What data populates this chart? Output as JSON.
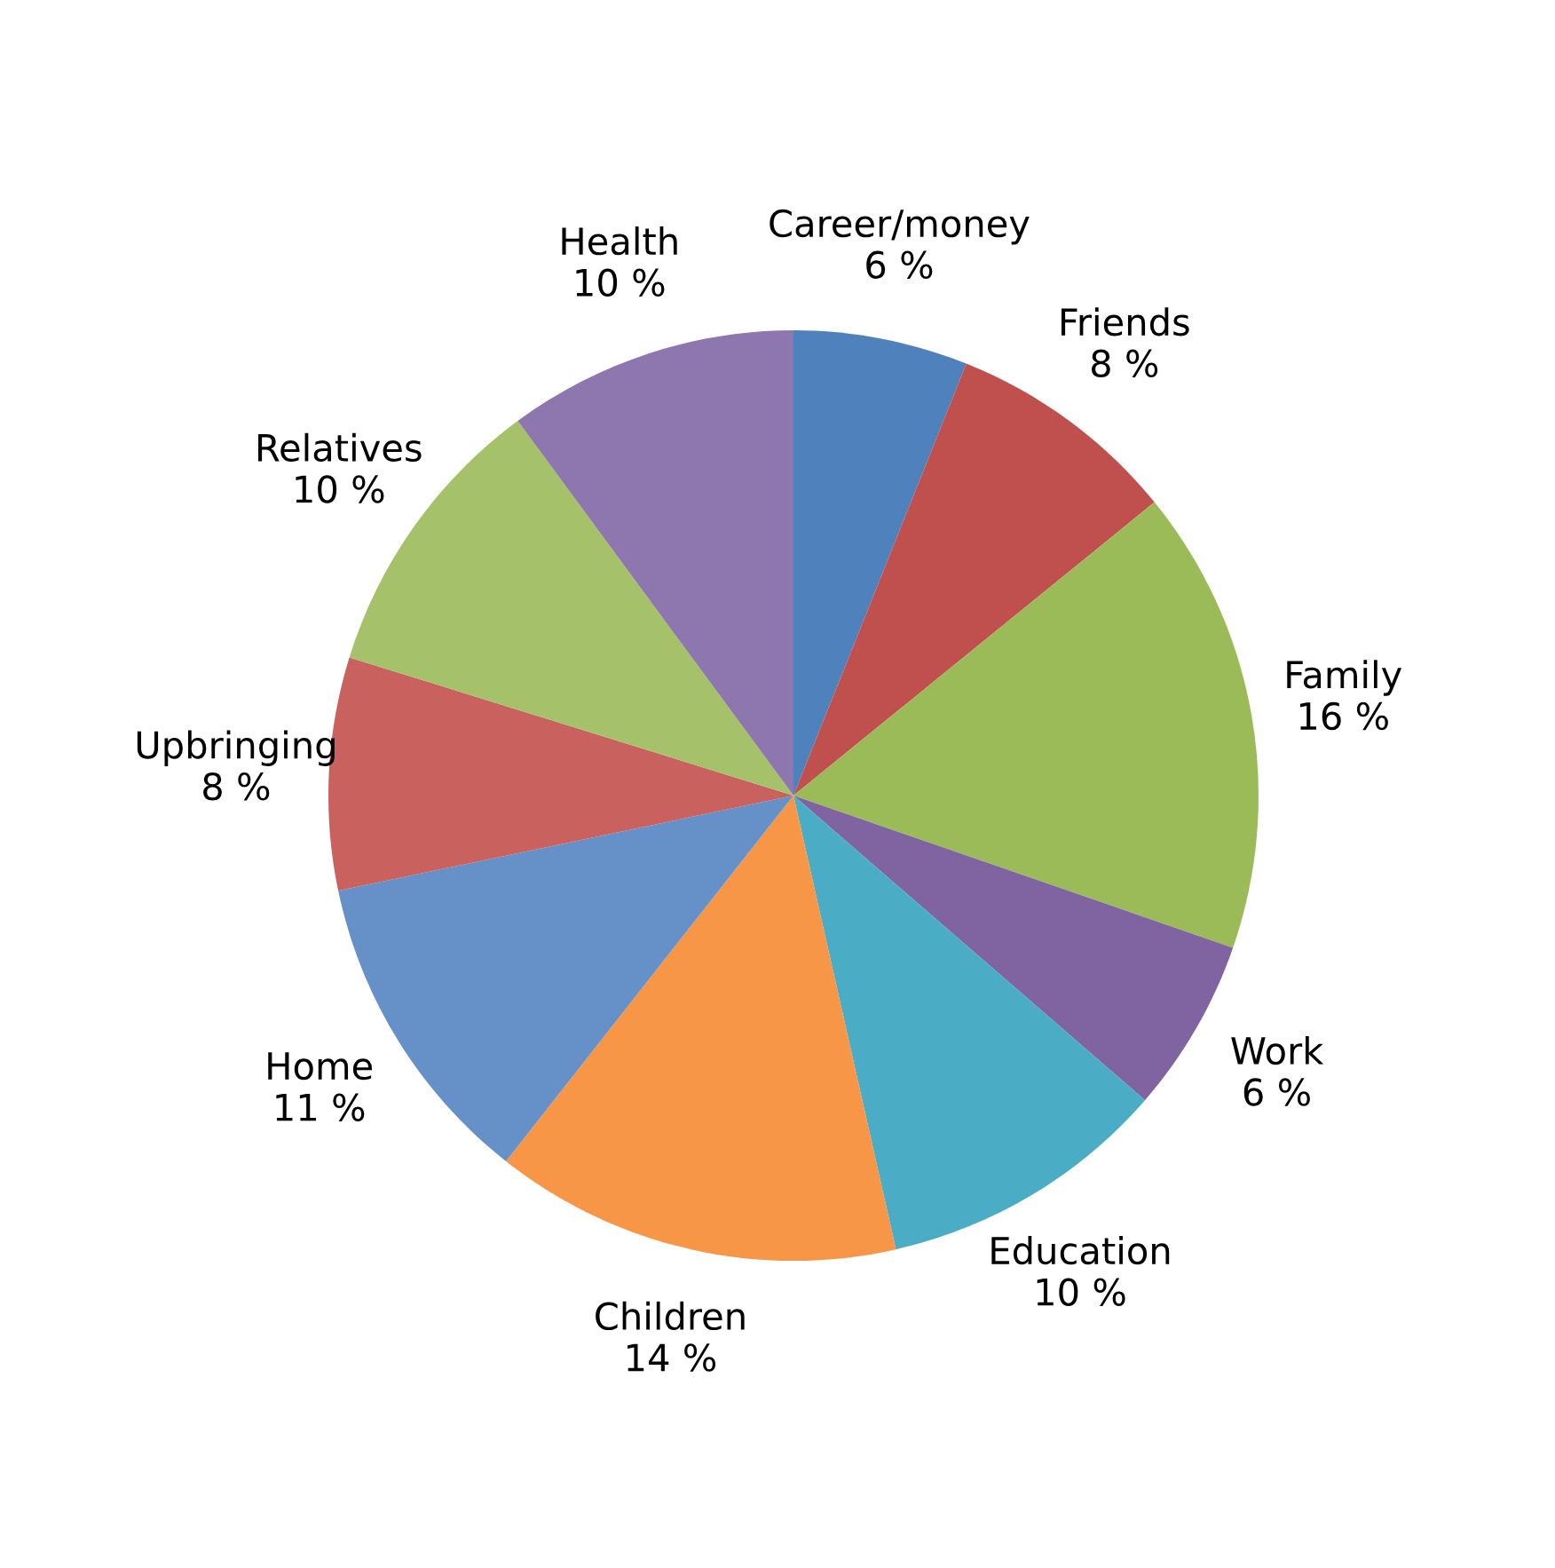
{
  "chart_data": {
    "type": "pie",
    "categories": [
      "Career/money",
      "Friends",
      "Family",
      "Work",
      "Education",
      "Children",
      "Home",
      "Upbringing",
      "Relatives",
      "Health"
    ],
    "values": [
      6,
      8,
      16,
      6,
      10,
      14,
      11,
      8,
      10,
      10
    ],
    "value_labels": [
      "6 %",
      "8 %",
      "16 %",
      "6 %",
      "10 %",
      "14 %",
      "11 %",
      "8 %",
      "10 %",
      "10 %"
    ],
    "colors": [
      "#4f81bd",
      "#c0504d",
      "#9bbb59",
      "#8064a2",
      "#4bacc6",
      "#f79646",
      "#6590c8",
      "#c9625e",
      "#a5c26a",
      "#8e77ae"
    ]
  }
}
